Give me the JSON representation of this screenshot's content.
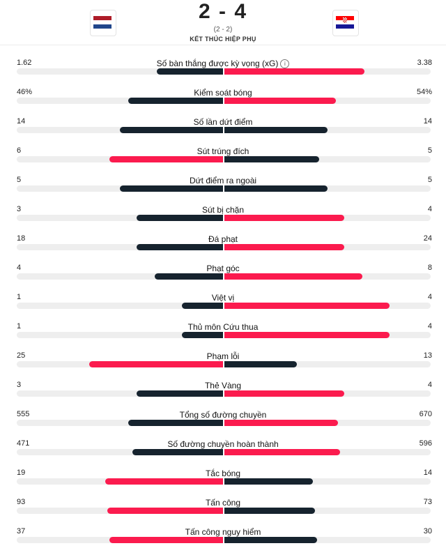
{
  "match": {
    "score": "2 - 4",
    "subscore": "(2 - 2)",
    "status": "KẾT THÚC HIỆP PHỤ",
    "home_flag_icon": "netherlands-flag-icon",
    "away_flag_icon": "croatia-flag-icon"
  },
  "colors": {
    "dark": "#16232e",
    "accent": "#fb1b4e",
    "track": "#eeeeee"
  },
  "stats": [
    {
      "label": "Số bàn thắng được kỳ vọng (xG)",
      "home": "1.62",
      "away": "3.38",
      "home_num": 1.62,
      "away_num": 3.38,
      "info": true,
      "home_fill": 0.32,
      "away_fill": 0.68
    },
    {
      "label": "Kiểm soát bóng",
      "home": "46%",
      "away": "54%",
      "home_num": 46,
      "away_num": 54,
      "home_fill": 0.46,
      "away_fill": 0.54
    },
    {
      "label": "Số lần dứt điểm",
      "home": "14",
      "away": "14",
      "home_num": 14,
      "away_num": 14,
      "home_fill": 0.5,
      "away_fill": 0.5
    },
    {
      "label": "Sút trúng đích",
      "home": "6",
      "away": "5",
      "home_num": 6,
      "away_num": 5,
      "home_fill": 0.55,
      "away_fill": 0.46
    },
    {
      "label": "Dứt điểm ra ngoài",
      "home": "5",
      "away": "5",
      "home_num": 5,
      "away_num": 5,
      "home_fill": 0.5,
      "away_fill": 0.5
    },
    {
      "label": "Sút bị chặn",
      "home": "3",
      "away": "4",
      "home_num": 3,
      "away_num": 4,
      "home_fill": 0.42,
      "away_fill": 0.58
    },
    {
      "label": "Đá phạt",
      "home": "18",
      "away": "24",
      "home_num": 18,
      "away_num": 24,
      "home_fill": 0.42,
      "away_fill": 0.58
    },
    {
      "label": "Phạt góc",
      "home": "4",
      "away": "8",
      "home_num": 4,
      "away_num": 8,
      "home_fill": 0.33,
      "away_fill": 0.67
    },
    {
      "label": "Việt vị",
      "home": "1",
      "away": "4",
      "home_num": 1,
      "away_num": 4,
      "home_fill": 0.2,
      "away_fill": 0.8
    },
    {
      "label": "Thủ môn Cứu thua",
      "home": "1",
      "away": "4",
      "home_num": 1,
      "away_num": 4,
      "home_fill": 0.2,
      "away_fill": 0.8
    },
    {
      "label": "Phạm lỗi",
      "home": "25",
      "away": "13",
      "home_num": 25,
      "away_num": 13,
      "home_fill": 0.65,
      "away_fill": 0.35
    },
    {
      "label": "Thẻ Vàng",
      "home": "3",
      "away": "4",
      "home_num": 3,
      "away_num": 4,
      "home_fill": 0.42,
      "away_fill": 0.58
    },
    {
      "label": "Tổng số đường chuyền",
      "home": "555",
      "away": "670",
      "home_num": 555,
      "away_num": 670,
      "home_fill": 0.46,
      "away_fill": 0.55
    },
    {
      "label": "Số đường chuyền hoàn thành",
      "home": "471",
      "away": "596",
      "home_num": 471,
      "away_num": 596,
      "home_fill": 0.44,
      "away_fill": 0.56
    },
    {
      "label": "Tắc bóng",
      "home": "19",
      "away": "14",
      "home_num": 19,
      "away_num": 14,
      "home_fill": 0.57,
      "away_fill": 0.43
    },
    {
      "label": "Tấn công",
      "home": "93",
      "away": "73",
      "home_num": 93,
      "away_num": 73,
      "home_fill": 0.56,
      "away_fill": 0.44
    },
    {
      "label": "Tấn công nguy hiểm",
      "home": "37",
      "away": "30",
      "home_num": 37,
      "away_num": 30,
      "home_fill": 0.55,
      "away_fill": 0.45
    }
  ]
}
